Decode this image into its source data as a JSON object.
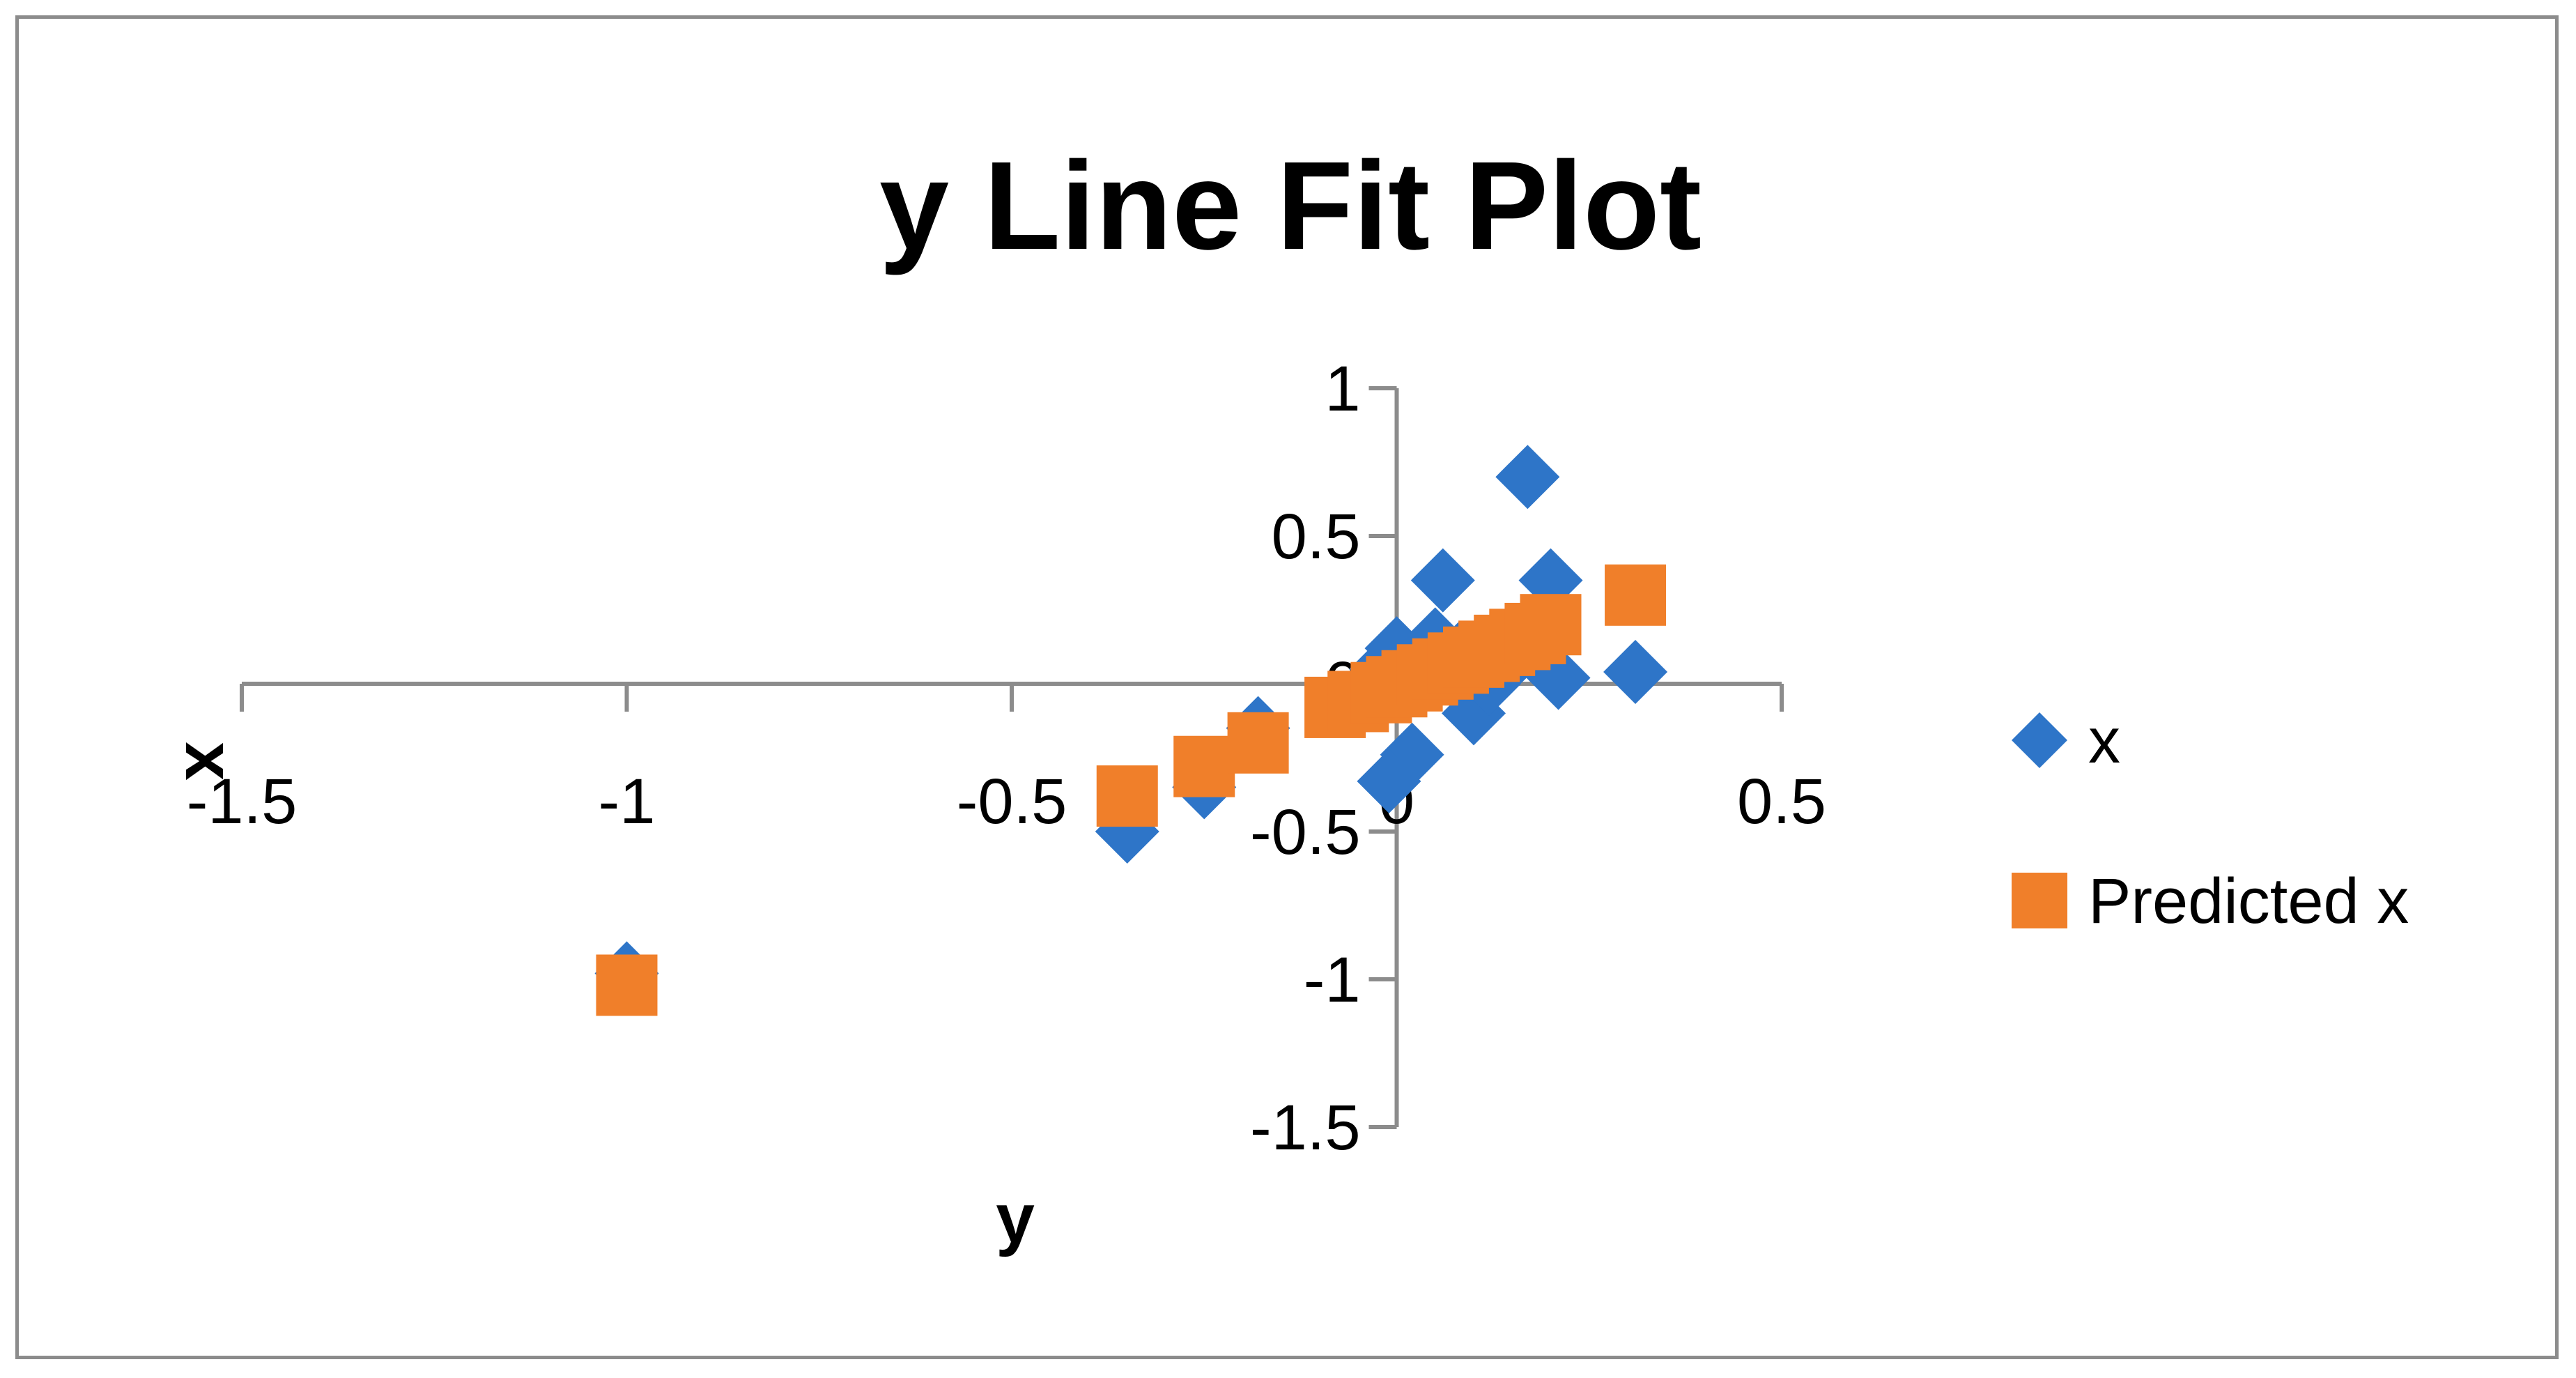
{
  "chart_data": {
    "type": "scatter",
    "title": "y Line Fit  Plot",
    "xlabel": "y",
    "ylabel": "x",
    "xlim": [
      -1.5,
      0.5
    ],
    "ylim": [
      -1.5,
      1
    ],
    "xticks": [
      -1.5,
      -1,
      -0.5,
      0,
      0.5
    ],
    "yticks": [
      -1.5,
      -1,
      -0.5,
      0,
      0.5,
      1
    ],
    "grid": false,
    "legend": "right",
    "series": [
      {
        "name": "x",
        "marker": "diamond",
        "color": "#2e75c8",
        "x": [
          -1.0,
          -0.35,
          -0.25,
          -0.18,
          -0.02,
          0.0,
          0.02,
          0.04,
          0.06,
          0.08,
          0.1,
          0.12,
          0.15,
          0.17,
          0.2,
          0.21,
          0.31,
          -0.01,
          0.01,
          0.05,
          0.09
        ],
        "y": [
          -0.98,
          -0.5,
          -0.35,
          -0.15,
          0.05,
          0.12,
          -0.24,
          0.08,
          0.35,
          0.1,
          -0.1,
          0.0,
          0.08,
          0.7,
          0.35,
          0.02,
          0.04,
          -0.33,
          0.0,
          0.15,
          0.05
        ]
      },
      {
        "name": "Predicted x",
        "marker": "square",
        "color": "#f07f2a",
        "x": [
          -1.0,
          -0.35,
          -0.25,
          -0.18,
          -0.08,
          -0.05,
          -0.02,
          0.0,
          0.02,
          0.04,
          0.06,
          0.08,
          0.1,
          0.12,
          0.14,
          0.16,
          0.18,
          0.2,
          0.31
        ],
        "y": [
          -1.02,
          -0.38,
          -0.28,
          -0.2,
          -0.08,
          -0.06,
          -0.03,
          -0.01,
          0.01,
          0.03,
          0.05,
          0.07,
          0.09,
          0.11,
          0.13,
          0.15,
          0.17,
          0.2,
          0.3
        ]
      }
    ]
  }
}
